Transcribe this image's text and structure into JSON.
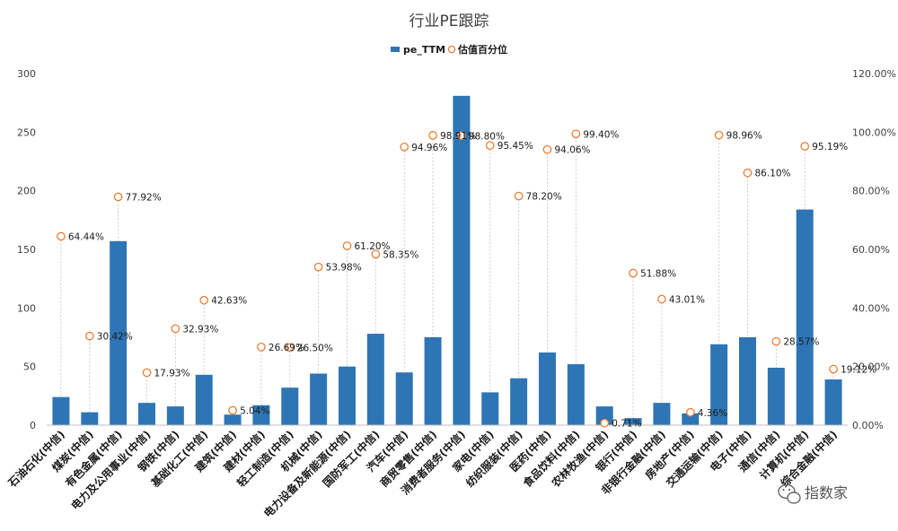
{
  "chart_data": {
    "type": "bar",
    "title": "行业PE跟踪",
    "categories": [
      "石油石化(中信)",
      "煤炭(中信)",
      "有色金属(中信)",
      "电力及公用事业(中信)",
      "钢铁(中信)",
      "基础化工(中信)",
      "建筑(中信)",
      "建材(中信)",
      "轻工制造(中信)",
      "机械(中信)",
      "电力设备及新能源(中信)",
      "国防军工(中信)",
      "汽车(中信)",
      "商贸零售(中信)",
      "消费者服务(中信)",
      "家电(中信)",
      "纺织服装(中信)",
      "医药(中信)",
      "食品饮料(中信)",
      "农林牧渔(中信)",
      "银行(中信)",
      "非银行金融(中信)",
      "房地产(中信)",
      "交通运输(中信)",
      "电子(中信)",
      "通信(中信)",
      "计算机(中信)",
      "综合金融(中信)"
    ],
    "series": [
      {
        "name": "pe_TTM",
        "type": "bar",
        "axis": "left",
        "color": "#2E75B6",
        "values": [
          24,
          11,
          157,
          19,
          16,
          43,
          9,
          17,
          32,
          44,
          50,
          78,
          45,
          75,
          281,
          28,
          40,
          62,
          52,
          16,
          6,
          19,
          10,
          69,
          75,
          49,
          184,
          39
        ]
      },
      {
        "name": "估值百分位",
        "type": "scatter",
        "axis": "right",
        "color": "#ED7D31",
        "values": [
          64.44,
          30.42,
          77.92,
          17.93,
          32.93,
          42.63,
          5.04,
          26.69,
          26.5,
          53.98,
          61.2,
          58.35,
          94.96,
          98.91,
          98.8,
          95.45,
          78.2,
          94.06,
          99.4,
          0.71,
          51.88,
          43.01,
          4.36,
          98.96,
          86.1,
          28.57,
          95.19,
          19.12
        ],
        "labels": [
          "64.44%",
          "30.42%",
          "77.92%",
          "17.93%",
          "32.93%",
          "42.63%",
          "5.04%",
          "26.69%",
          "26.50%",
          "53.98%",
          "61.20%",
          "58.35%",
          "94.96%",
          "98.91%",
          "98.80%",
          "95.45%",
          "78.20%",
          "94.06%",
          "99.40%",
          "0.71%",
          "51.88%",
          "43.01%",
          "4.36%",
          "98.96%",
          "86.10%",
          "28.57%",
          "95.19%",
          "19.12%"
        ]
      }
    ],
    "y_left": {
      "min": 0,
      "max": 300,
      "ticks": [
        "0",
        "50",
        "100",
        "150",
        "200",
        "250",
        "300"
      ]
    },
    "y_right": {
      "min": 0,
      "max": 120,
      "ticks": [
        "0.00%",
        "20.00%",
        "40.00%",
        "60.00%",
        "80.00%",
        "100.00%",
        "120.00%"
      ]
    },
    "xlabel": "",
    "ylabel": "",
    "grid": false,
    "drop_lines": true,
    "legend": {
      "position": "top",
      "items": [
        "pe_TTM",
        "估值百分位"
      ]
    }
  },
  "watermark": {
    "text": "指数家",
    "icon": "wechat-icon"
  }
}
